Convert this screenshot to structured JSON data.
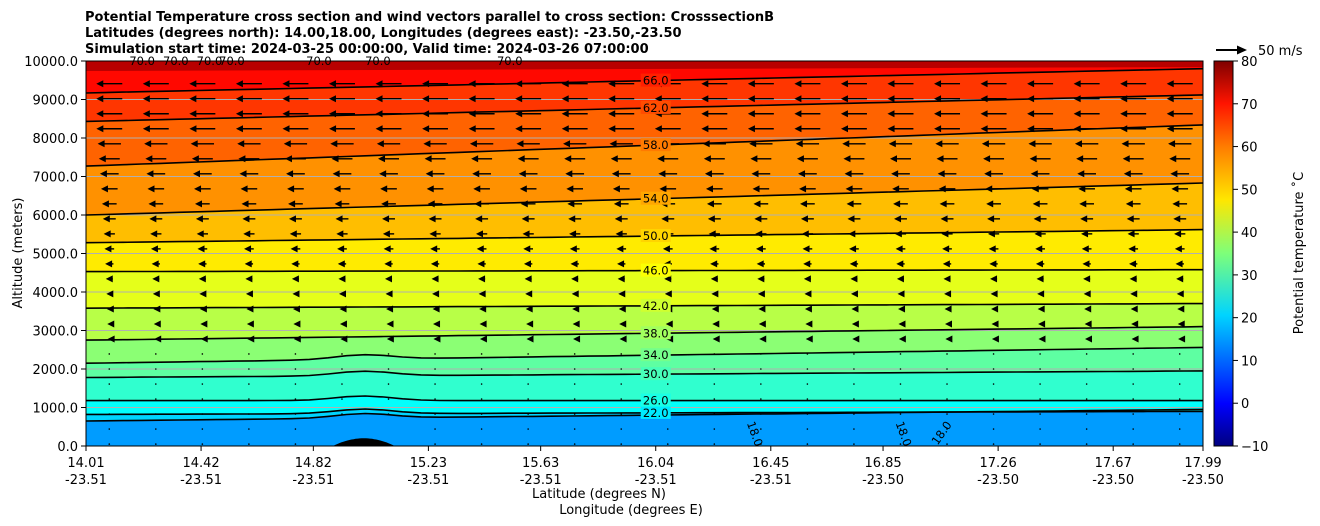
{
  "chart_data": {
    "type": "heatmap",
    "title": [
      "Potential Temperature cross section and wind vectors parallel to cross section: CrosssectionB",
      "Latitudes (degrees north): 14.00,18.00, Longitudes (degrees east): -23.50,-23.50",
      "Simulation start time: 2024-03-25 00:00:00, Valid time: 2024-03-26 07:00:00"
    ],
    "xlabel": "Latitude (degrees N)",
    "xlabel2": "Longitude (degrees E)",
    "ylabel": "Altitude (meters)",
    "ylim": [
      0,
      10000
    ],
    "yticks": [
      0,
      1000,
      2000,
      3000,
      4000,
      5000,
      6000,
      7000,
      8000,
      9000,
      10000
    ],
    "ytick_labels": [
      "0.0",
      "1000.0",
      "2000.0",
      "3000.0",
      "4000.0",
      "5000.0",
      "6000.0",
      "7000.0",
      "8000.0",
      "9000.0",
      "10000.0"
    ],
    "xlim": [
      14.01,
      17.99
    ],
    "xticks_lat": [
      "14.01",
      "14.42",
      "14.82",
      "15.23",
      "15.63",
      "16.04",
      "16.45",
      "16.85",
      "17.26",
      "17.67",
      "17.99"
    ],
    "xticks_lon": [
      "-23.51",
      "-23.51",
      "-23.51",
      "-23.51",
      "-23.51",
      "-23.51",
      "-23.51",
      "-23.50",
      "-23.50",
      "-23.50",
      "-23.50"
    ],
    "xtick_values": [
      14.01,
      14.42,
      14.82,
      15.23,
      15.63,
      16.04,
      16.45,
      16.85,
      17.26,
      17.67,
      17.99
    ],
    "colorbar": {
      "label": "Potential temperature ˚C",
      "range": [
        -10,
        80
      ],
      "ticks": [
        -10,
        0,
        10,
        20,
        30,
        40,
        50,
        60,
        70,
        80
      ],
      "colormap": "jet"
    },
    "contours": [
      {
        "level": 18.0,
        "label": "18.0",
        "left_alt": 650,
        "right_alt": 950
      },
      {
        "level": 22.0,
        "label": "22.0",
        "left_alt": 820,
        "right_alt": 900
      },
      {
        "level": 26.0,
        "label": "26.0",
        "left_alt": 1180,
        "right_alt": 1180
      },
      {
        "level": 30.0,
        "label": "30.0",
        "left_alt": 1780,
        "right_alt": 1950
      },
      {
        "level": 34.0,
        "label": "34.0",
        "left_alt": 2150,
        "right_alt": 2560
      },
      {
        "level": 38.0,
        "label": "38.0",
        "left_alt": 2750,
        "right_alt": 3100
      },
      {
        "level": 42.0,
        "label": "42.0",
        "left_alt": 3580,
        "right_alt": 3700
      },
      {
        "level": 46.0,
        "label": "46.0",
        "left_alt": 4530,
        "right_alt": 4580
      },
      {
        "level": 50.0,
        "label": "50.0",
        "left_alt": 5280,
        "right_alt": 5620
      },
      {
        "level": 54.0,
        "label": "54.0",
        "left_alt": 6000,
        "right_alt": 6830
      },
      {
        "level": 58.0,
        "label": "58.0",
        "left_alt": 7270,
        "right_alt": 8340
      },
      {
        "level": 62.0,
        "label": "62.0",
        "left_alt": 8430,
        "right_alt": 9120
      },
      {
        "level": 66.0,
        "label": "66.0",
        "left_alt": 9170,
        "right_alt": 9800
      },
      {
        "level": 70.0,
        "label": "70.0",
        "left_alt": 10000,
        "right_alt": 10000
      }
    ],
    "wind_reference": {
      "label": "50 m/s",
      "value": 50
    },
    "wind_direction": "westward (toward decreasing latitude), strengthening with altitude",
    "terrain": {
      "center_lat": 15.0,
      "peak_alt": 200
    },
    "grid": true
  }
}
